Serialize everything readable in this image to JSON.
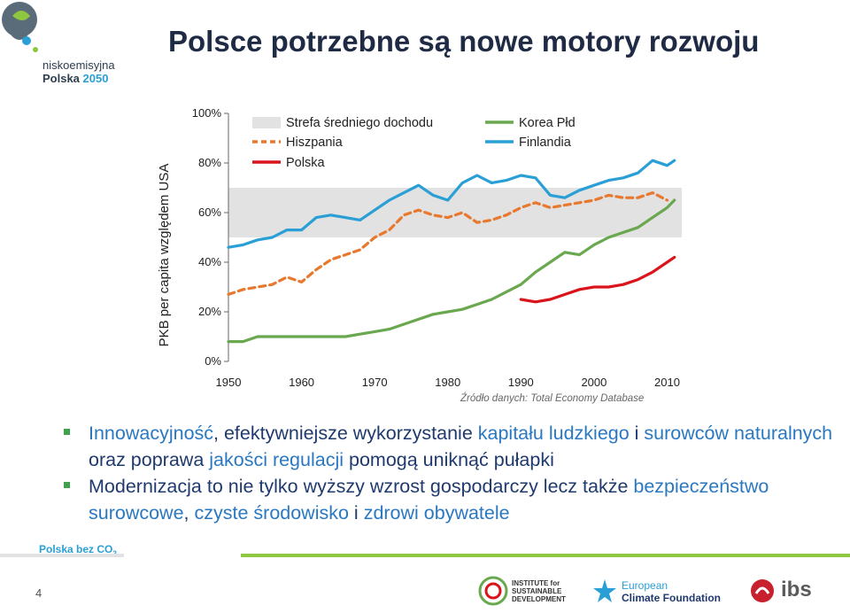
{
  "header": {
    "title": "Polsce potrzebne są nowe motory rozwoju",
    "logo_line1": "niskoemisyjna",
    "logo_line2": "Polska",
    "logo_year": "2050"
  },
  "colors": {
    "band": "#e2e2e2",
    "hiszpania": "#e8782e",
    "korea": "#6aa84f",
    "finlandia": "#2a9fd6",
    "polska": "#d9141b",
    "accent_green": "#3fa34d",
    "text_blue": "#1f3a6e",
    "highlight_blue": "#2a78c2"
  },
  "chart_data": {
    "type": "line",
    "ylabel": "PKB per capita względem USA",
    "xlabel": "",
    "xlim": [
      1950,
      2012
    ],
    "ylim": [
      0,
      100
    ],
    "x_ticks": [
      1950,
      1960,
      1970,
      1980,
      1990,
      2000,
      2010
    ],
    "y_ticks": [
      "0%",
      "20%",
      "40%",
      "60%",
      "80%",
      "100%"
    ],
    "band": {
      "label": "Strefa średniego dochodu",
      "from": 50,
      "to": 70
    },
    "legend_position": "top",
    "series": [
      {
        "name": "Hiszpania",
        "style": "dashed",
        "color": "#e8782e",
        "x": [
          1950,
          1952,
          1954,
          1956,
          1958,
          1960,
          1962,
          1964,
          1966,
          1968,
          1970,
          1972,
          1974,
          1976,
          1978,
          1980,
          1982,
          1984,
          1986,
          1988,
          1990,
          1992,
          1994,
          1996,
          1998,
          2000,
          2002,
          2004,
          2006,
          2008,
          2010
        ],
        "y": [
          27,
          29,
          30,
          31,
          34,
          32,
          37,
          41,
          43,
          45,
          50,
          53,
          59,
          61,
          59,
          58,
          60,
          56,
          57,
          59,
          62,
          64,
          62,
          63,
          64,
          65,
          67,
          66,
          66,
          68,
          65
        ]
      },
      {
        "name": "Korea Płd",
        "style": "solid",
        "color": "#6aa84f",
        "x": [
          1950,
          1952,
          1954,
          1956,
          1958,
          1960,
          1962,
          1964,
          1966,
          1968,
          1970,
          1972,
          1974,
          1976,
          1978,
          1980,
          1982,
          1984,
          1986,
          1988,
          1990,
          1992,
          1994,
          1996,
          1998,
          2000,
          2002,
          2004,
          2006,
          2008,
          2010,
          2011
        ],
        "y": [
          8,
          8,
          10,
          10,
          10,
          10,
          10,
          10,
          10,
          11,
          12,
          13,
          15,
          17,
          19,
          20,
          21,
          23,
          25,
          28,
          31,
          36,
          40,
          44,
          43,
          47,
          50,
          52,
          54,
          58,
          62,
          65
        ]
      },
      {
        "name": "Finlandia",
        "style": "solid",
        "color": "#2a9fd6",
        "x": [
          1950,
          1952,
          1954,
          1956,
          1958,
          1960,
          1962,
          1964,
          1966,
          1968,
          1970,
          1972,
          1974,
          1976,
          1978,
          1980,
          1982,
          1984,
          1986,
          1988,
          1990,
          1992,
          1994,
          1996,
          1998,
          2000,
          2002,
          2004,
          2006,
          2008,
          2010,
          2011
        ],
        "y": [
          46,
          47,
          49,
          50,
          53,
          53,
          58,
          59,
          58,
          57,
          61,
          65,
          68,
          71,
          67,
          65,
          72,
          75,
          72,
          73,
          75,
          74,
          67,
          66,
          69,
          71,
          73,
          74,
          76,
          81,
          79,
          81
        ]
      },
      {
        "name": "Polska",
        "style": "solid",
        "color": "#d9141b",
        "x": [
          1990,
          1992,
          1994,
          1996,
          1998,
          2000,
          2002,
          2004,
          2006,
          2008,
          2010,
          2011
        ],
        "y": [
          25,
          24,
          25,
          27,
          29,
          30,
          30,
          31,
          33,
          36,
          40,
          42
        ]
      }
    ]
  },
  "source": "Źródło danych: Total Economy Database",
  "bullets": [
    {
      "parts": [
        {
          "t": "Innowacyjność",
          "hl": true
        },
        {
          "t": ", efektywniejsze wykorzystanie ",
          "hl": false
        },
        {
          "t": "kapitału ludzkiego",
          "hl": true
        },
        {
          "t": " i ",
          "hl": false
        },
        {
          "t": "surowców naturalnych",
          "hl": true
        },
        {
          "t": " oraz poprawa ",
          "hl": false
        },
        {
          "t": "jakości regulacji",
          "hl": true
        },
        {
          "t": " pomogą uniknąć pułapki",
          "hl": false
        }
      ]
    },
    {
      "parts": [
        {
          "t": "Modernizacja to nie tylko wyższy wzrost gospodarczy lecz także ",
          "hl": false
        },
        {
          "t": "bezpieczeństwo surowcowe",
          "hl": true
        },
        {
          "t": ", ",
          "hl": false
        },
        {
          "t": "czyste środowisko",
          "hl": true
        },
        {
          "t": " i ",
          "hl": false
        },
        {
          "t": "zdrowi obywatele",
          "hl": true
        }
      ]
    }
  ],
  "footer": {
    "brand": "Polska bez CO",
    "brand_sub": "2",
    "page_number": "4",
    "logo_isd": "INSTITUTE for SUSTAINABLE DEVELOPMENT",
    "logo_ecf_1": "European",
    "logo_ecf_2": "Climate Foundation",
    "logo_ibs": "ibs"
  }
}
